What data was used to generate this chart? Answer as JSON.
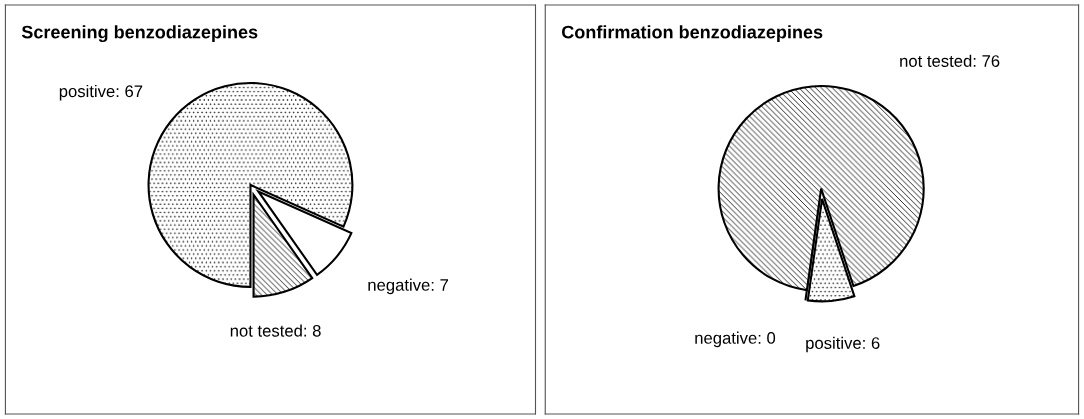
{
  "chart_data": [
    {
      "type": "pie",
      "title": "Screening benzodiazepines",
      "categories": [
        "not tested: 8",
        "negative: 7",
        "positive: 67"
      ],
      "values": [
        8,
        7,
        67
      ],
      "colors": [
        "#ffffff",
        "#ffffff",
        "#ffffff"
      ]
    },
    {
      "type": "pie",
      "title": "Confirmation benzodiazepines",
      "categories": [
        "negative: 0",
        "positive: 6",
        "not tested: 76"
      ],
      "values": [
        0,
        6,
        76
      ],
      "colors": [
        "#ffffff",
        "#ffffff",
        "#ffffff"
      ]
    }
  ]
}
